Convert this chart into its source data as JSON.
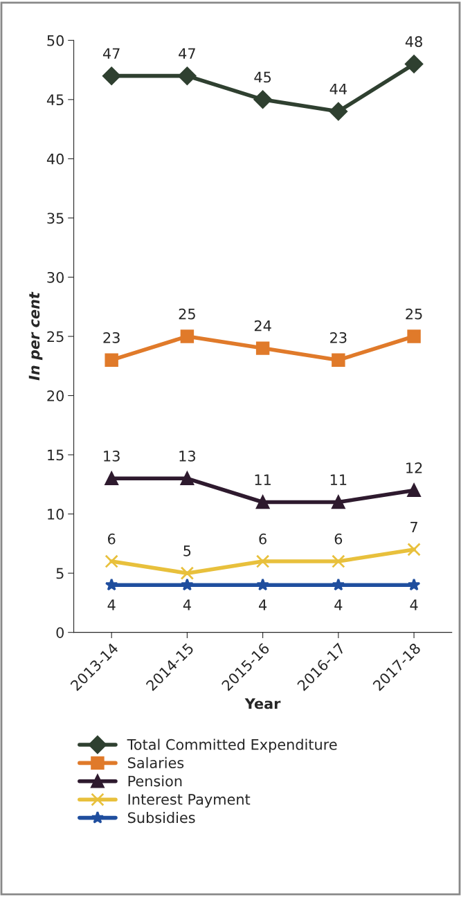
{
  "chart_data": {
    "type": "line",
    "xlabel": "Year",
    "ylabel": "In per cent",
    "categories": [
      "2013-14",
      "2014-15",
      "2015-16",
      "2016-17",
      "2017-18"
    ],
    "series": [
      {
        "name": "Total Committed Expenditure",
        "color": "#2f4030",
        "marker": "diamond",
        "values": [
          47,
          47,
          45,
          44,
          48
        ]
      },
      {
        "name": "Salaries",
        "color": "#e07a2a",
        "marker": "square",
        "values": [
          23,
          25,
          24,
          23,
          25
        ]
      },
      {
        "name": "Pension",
        "color": "#2e1a2e",
        "marker": "triangle",
        "values": [
          13,
          13,
          11,
          11,
          12
        ]
      },
      {
        "name": "Interest Payment",
        "color": "#e8c03c",
        "marker": "cross",
        "values": [
          6,
          5,
          6,
          6,
          7
        ]
      },
      {
        "name": "Subsidies",
        "color": "#1f4e9e",
        "marker": "star",
        "values": [
          4,
          4,
          4,
          4,
          4
        ]
      }
    ],
    "ylim": [
      0,
      50
    ],
    "yticks": [
      0,
      5,
      10,
      15,
      20,
      25,
      30,
      35,
      40,
      45,
      50
    ],
    "data_labels": true,
    "legend": "bottom",
    "grid": false
  }
}
